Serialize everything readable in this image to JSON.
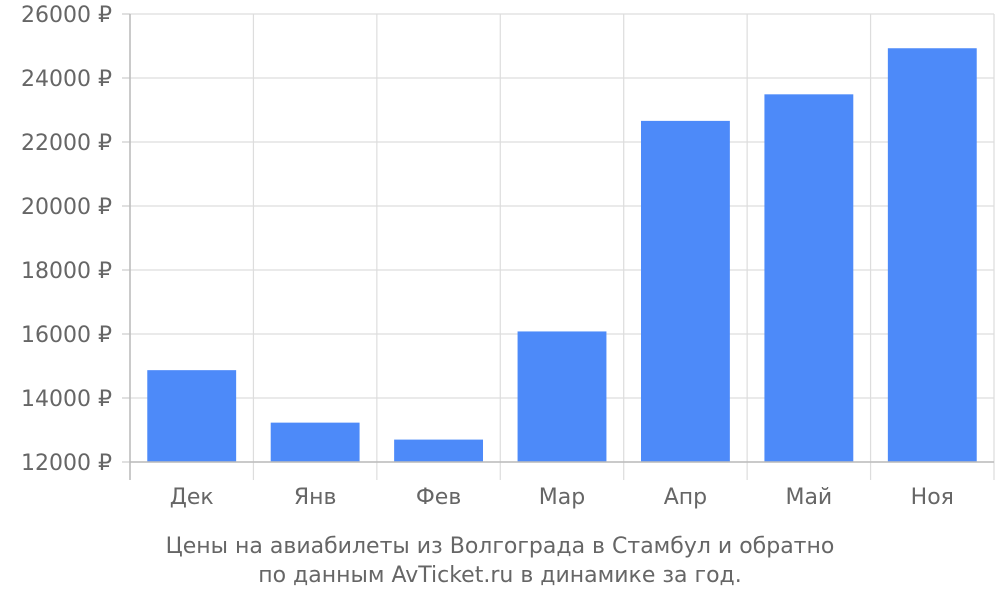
{
  "chart_data": {
    "type": "bar",
    "categories": [
      "Дек",
      "Янв",
      "Фев",
      "Мар",
      "Апр",
      "Май",
      "Ноя"
    ],
    "values": [
      14870,
      13230,
      12700,
      16080,
      22660,
      23490,
      24930
    ],
    "ylim": [
      12000,
      26000
    ],
    "yticks": [
      12000,
      14000,
      16000,
      18000,
      20000,
      22000,
      24000,
      26000
    ],
    "ytick_suffix": " ₽",
    "grid": true,
    "bar_color": "#4d8af9",
    "caption_line1": "Цены на авиабилеты из Волгограда в Стамбул и обратно",
    "caption_line2": "по данным AvTicket.ru в динамике за год."
  }
}
